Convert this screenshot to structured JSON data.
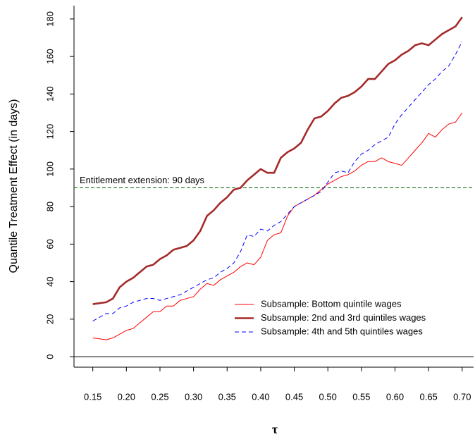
{
  "chart_data": {
    "type": "line",
    "x_label": "τ",
    "y_label": "Quantile Treatment Effect (in days)",
    "x": [
      0.15,
      0.16,
      0.17,
      0.18,
      0.19,
      0.2,
      0.21,
      0.22,
      0.23,
      0.24,
      0.25,
      0.26,
      0.27,
      0.28,
      0.29,
      0.3,
      0.31,
      0.32,
      0.33,
      0.34,
      0.35,
      0.36,
      0.37,
      0.38,
      0.39,
      0.4,
      0.41,
      0.42,
      0.43,
      0.44,
      0.45,
      0.46,
      0.47,
      0.48,
      0.49,
      0.5,
      0.51,
      0.52,
      0.53,
      0.54,
      0.55,
      0.56,
      0.57,
      0.58,
      0.59,
      0.6,
      0.61,
      0.62,
      0.63,
      0.64,
      0.65,
      0.66,
      0.67,
      0.68,
      0.69,
      0.7
    ],
    "series": [
      {
        "name": "Subsample: Bottom quintile wages",
        "color": "#ff0000",
        "line_width": 1,
        "dashed": false,
        "values": [
          10,
          9.5,
          9,
          10,
          12,
          14,
          15,
          18,
          21,
          24,
          24,
          27,
          27,
          30,
          31,
          32,
          36,
          39,
          38,
          41,
          43,
          45,
          48,
          50,
          49,
          53,
          62,
          65,
          66,
          75,
          80,
          82,
          84,
          86,
          89,
          92,
          94,
          96,
          97,
          99,
          102,
          104,
          104,
          106,
          104,
          103,
          102,
          106,
          110,
          114,
          119,
          117,
          121,
          124,
          125,
          130
        ]
      },
      {
        "name": "Subsample: 2nd and 3rd quintiles wages",
        "color": "#a52a2a",
        "line_width": 2.6,
        "dashed": false,
        "values": [
          28,
          28.5,
          29,
          31,
          37,
          40,
          42,
          45,
          48,
          49,
          52,
          54,
          57,
          58,
          59,
          62,
          67,
          75,
          78,
          82,
          85,
          89,
          90,
          94,
          97,
          100,
          98,
          98,
          106,
          109,
          111,
          114,
          121,
          127,
          128,
          131,
          135,
          138,
          139,
          141,
          144,
          148,
          148,
          152,
          156,
          158,
          161,
          163,
          166,
          167,
          166,
          169,
          172,
          174,
          176,
          181
        ]
      },
      {
        "name": "Subsample: 4th and 5th quintiles wages",
        "color": "#0000ff",
        "line_width": 1,
        "dashed": true,
        "values": [
          19,
          21,
          23,
          23,
          26,
          27,
          29,
          30,
          31,
          31,
          30,
          31,
          32,
          33,
          35,
          37,
          39,
          41,
          42,
          45,
          47,
          50,
          56,
          65,
          64,
          68,
          67,
          70,
          72,
          76,
          80,
          82,
          84,
          86,
          88,
          93,
          98,
          99,
          98,
          104,
          108,
          110,
          113,
          115,
          117,
          124,
          129,
          133,
          137,
          141,
          145,
          148,
          152,
          155,
          161,
          168
        ]
      }
    ],
    "reference_lines": [
      {
        "value": 90,
        "color": "#006400",
        "dashed": true,
        "label": "Entitlement extension: 90 days"
      },
      {
        "value": 0,
        "color": "#000000",
        "dashed": false
      }
    ],
    "xlim": [
      0.122,
      0.717
    ],
    "ylim": [
      -5.6,
      187.1
    ],
    "xticks": [
      0.15,
      {
        "value": 0.2,
        "label": "0.20"
      },
      0.25,
      {
        "value": 0.3,
        "label": "0.30"
      },
      0.35,
      {
        "value": 0.4,
        "label": "0.40"
      },
      0.45,
      {
        "value": 0.5,
        "label": "0.50"
      },
      0.55,
      {
        "value": 0.6,
        "label": "0.60"
      },
      0.65,
      {
        "value": 0.7,
        "label": "0.70"
      }
    ],
    "yticks": [
      0,
      20,
      40,
      60,
      80,
      100,
      120,
      140,
      160,
      180
    ],
    "legend": "bottom-right"
  }
}
